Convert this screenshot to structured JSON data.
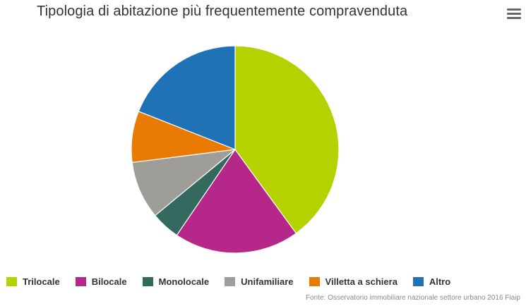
{
  "chart_data": {
    "type": "pie",
    "title": "Tipologia di abitazione più frequentemente compravenduta",
    "categories": [
      "Trilocale",
      "Bilocale",
      "Monolocale",
      "Unifamiliare",
      "Villetta a schiera",
      "Altro"
    ],
    "values": [
      40,
      19.5,
      4.5,
      9,
      8,
      19
    ],
    "colors": [
      "#b5d100",
      "#b5288a",
      "#33695f",
      "#9e9d97",
      "#e97a02",
      "#1f72b5"
    ],
    "legend_position": "bottom",
    "source": "Fonte: Osservatorio immobiliare nazionale settore urbano 2016 Fiaip"
  },
  "menu": {
    "icon": "hamburger-menu-icon"
  }
}
